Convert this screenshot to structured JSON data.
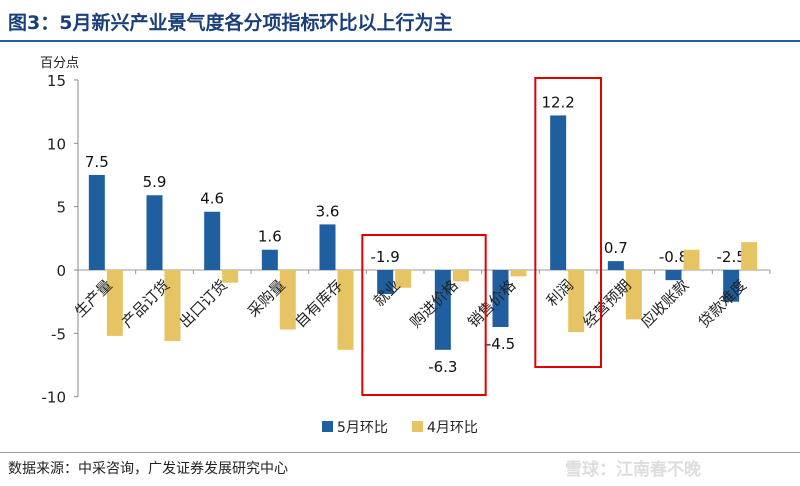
{
  "title": "图3：5月新兴产业景气度各分项指标环比以上行为主",
  "source": "数据来源：中采咨询，广发证券发展研究中心",
  "watermark": "雪球：江南春不晚",
  "chart_data": {
    "type": "bar",
    "ylabel": "百分点",
    "ylim": [
      -10,
      15
    ],
    "yticks": [
      15,
      10,
      5,
      0,
      -5,
      -10
    ],
    "categories": [
      "生产量",
      "产品订货",
      "出口订货",
      "采购量",
      "自有库存",
      "就业",
      "购进价格",
      "销售价格",
      "利润",
      "经营预期",
      "应收账款",
      "贷款难度"
    ],
    "series": [
      {
        "name": "5月环比",
        "color": "#1f5fa0",
        "values": [
          7.5,
          5.9,
          4.6,
          1.6,
          3.6,
          -1.9,
          -6.3,
          -4.5,
          12.2,
          0.7,
          -0.8,
          -2.5
        ],
        "labels": true
      },
      {
        "name": "4月环比",
        "color": "#e6c463",
        "values": [
          -5.2,
          -5.6,
          -1.0,
          -4.7,
          -6.3,
          -1.4,
          -0.9,
          -0.5,
          -4.9,
          -3.9,
          1.6,
          2.2
        ],
        "labels": false
      }
    ],
    "legend": "bottom",
    "highlights": [
      {
        "categories": [
          "就业",
          "购进价格"
        ],
        "color": "#e00000"
      },
      {
        "categories": [
          "利润"
        ],
        "color": "#e00000"
      }
    ]
  }
}
